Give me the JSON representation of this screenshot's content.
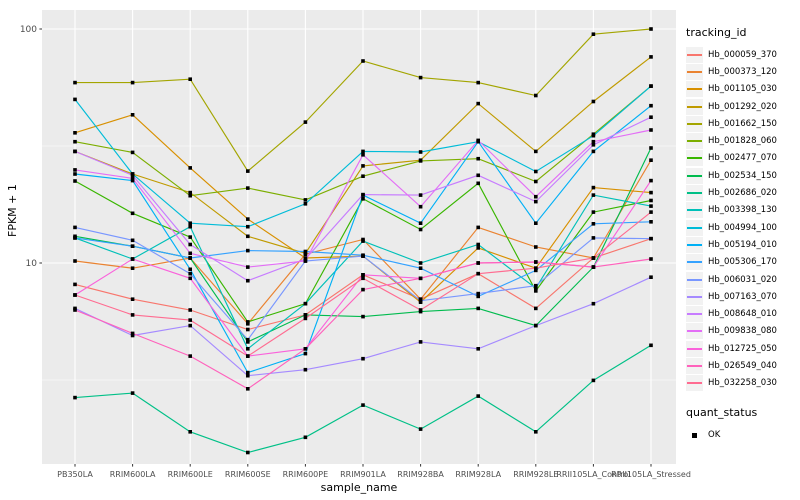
{
  "figure": {
    "panel_background": "#EBEBEB",
    "grid_color": "#FFFFFF",
    "axis_text_color": "#4D4D4D",
    "marker_color": "#000000"
  },
  "chart_data": {
    "type": "line",
    "title": "",
    "xlabel": "sample_name",
    "ylabel": "FPKM + 1",
    "y_scale": "log10",
    "ylim": [
      1.38,
      120
    ],
    "y_major_ticks": [
      10,
      100
    ],
    "y_minor_gridlines": [
      3.162,
      31.62
    ],
    "grid": true,
    "marker": "black-square",
    "legend_position": "right",
    "categories": [
      "PB350LA",
      "RRIM600LA",
      "RRIM600LE",
      "RRIM600SE",
      "RRIM600PE",
      "RRIM901LA",
      "RRIM928BA",
      "RRIM928LA",
      "RRIM928LE",
      "RRII105LA_Control",
      "RRII105LA_Stressed"
    ],
    "legend_title": "tracking_id",
    "series": [
      {
        "name": "Hb_000059_370",
        "color": "#F8766D",
        "values": [
          8.1,
          7.0,
          6.3,
          5.2,
          6.0,
          8.9,
          7.0,
          9.0,
          6.4,
          10.5,
          12.7
        ]
      },
      {
        "name": "Hb_000373_120",
        "color": "#EA8331",
        "values": [
          10.2,
          9.5,
          10.5,
          5.5,
          10.9,
          12.6,
          7.0,
          14.2,
          11.7,
          10.5,
          27.5
        ]
      },
      {
        "name": "Hb_001105_030",
        "color": "#D89000",
        "values": [
          36,
          43,
          25.5,
          15.4,
          10.5,
          10.7,
          6.8,
          11.6,
          9.5,
          21,
          20
        ]
      },
      {
        "name": "Hb_001292_020",
        "color": "#C09B00",
        "values": [
          30,
          24,
          20,
          13,
          11,
          26,
          27.5,
          48,
          30,
          49,
          76
        ]
      },
      {
        "name": "Hb_001662_150",
        "color": "#A3A500",
        "values": [
          59,
          59,
          61,
          24.7,
          40,
          73,
          62,
          59,
          52,
          95,
          100
        ]
      },
      {
        "name": "Hb_001828_060",
        "color": "#7CAE00",
        "values": [
          33,
          29.7,
          19.4,
          20.9,
          18.6,
          23.5,
          27.3,
          27.9,
          22.3,
          35.5,
          57
        ]
      },
      {
        "name": "Hb_002477_070",
        "color": "#39B600",
        "values": [
          22.4,
          16.3,
          12.9,
          5.6,
          6.7,
          18.8,
          13.9,
          21.9,
          7.6,
          16.5,
          18.5
        ]
      },
      {
        "name": "Hb_002534_150",
        "color": "#00BB4E",
        "values": [
          13.0,
          11.8,
          10.5,
          4.6,
          6.0,
          5.9,
          6.2,
          6.4,
          5.4,
          9.6,
          31
        ]
      },
      {
        "name": "Hb_002686_020",
        "color": "#00C087",
        "values": [
          2.66,
          2.78,
          1.9,
          1.55,
          1.8,
          2.47,
          1.95,
          2.7,
          1.9,
          3.15,
          4.45
        ]
      },
      {
        "name": "Hb_003398_130",
        "color": "#00C0B8",
        "values": [
          12.8,
          10.4,
          14.3,
          4.3,
          6.7,
          12.4,
          10.0,
          12.0,
          7.8,
          19.5,
          17.5
        ]
      },
      {
        "name": "Hb_004994_100",
        "color": "#00BCD8",
        "values": [
          50,
          24,
          14.8,
          14.3,
          17.9,
          30,
          29.8,
          33,
          24.6,
          35,
          57
        ]
      },
      {
        "name": "Hb_005194_010",
        "color": "#00B0F6",
        "values": [
          24,
          22.5,
          9.4,
          3.4,
          4.1,
          19.5,
          14.8,
          33,
          14.8,
          30,
          47
        ]
      },
      {
        "name": "Hb_005306_170",
        "color": "#35A2FF",
        "values": [
          12.8,
          11.8,
          10.5,
          11.3,
          11.2,
          10.8,
          9.5,
          7.2,
          9.3,
          14.7,
          15.0
        ]
      },
      {
        "name": "Hb_006031_020",
        "color": "#7997FF",
        "values": [
          14.2,
          12.5,
          9.0,
          4.7,
          10.2,
          10.7,
          6.9,
          7.4,
          8.0,
          12.8,
          12.7
        ]
      },
      {
        "name": "Hb_007163_070",
        "color": "#A58AFF",
        "values": [
          6.4,
          4.9,
          5.4,
          3.3,
          3.5,
          3.9,
          4.6,
          4.3,
          5.4,
          6.7,
          8.7
        ]
      },
      {
        "name": "Hb_008648_010",
        "color": "#C77CFF",
        "values": [
          30,
          23.7,
          12,
          8.4,
          10.4,
          19.6,
          19.5,
          23.7,
          18.3,
          32,
          42
        ]
      },
      {
        "name": "Hb_009838_080",
        "color": "#E36EF6",
        "values": [
          25,
          23,
          11,
          9.6,
          10.2,
          29,
          17.4,
          33.4,
          19.2,
          33,
          37
        ]
      },
      {
        "name": "Hb_012725_050",
        "color": "#FA62DB",
        "values": [
          7.3,
          10.4,
          8.6,
          4.0,
          4.3,
          8.9,
          8.6,
          10.0,
          10.1,
          9.6,
          22.5
        ]
      },
      {
        "name": "Hb_026549_040",
        "color": "#FF62BC",
        "values": [
          6.3,
          5.0,
          4.0,
          2.9,
          4.3,
          7.7,
          8.6,
          10.0,
          10.1,
          9.6,
          10.4
        ]
      },
      {
        "name": "Hb_032258_030",
        "color": "#FF6C91",
        "values": [
          7.3,
          6.0,
          5.7,
          4.0,
          5.8,
          8.6,
          6.3,
          9.0,
          9.5,
          10.5,
          16.5
        ]
      }
    ],
    "quant_legend": {
      "title": "quant_status",
      "items": [
        {
          "label": "OK",
          "marker": "black-square"
        }
      ]
    }
  }
}
